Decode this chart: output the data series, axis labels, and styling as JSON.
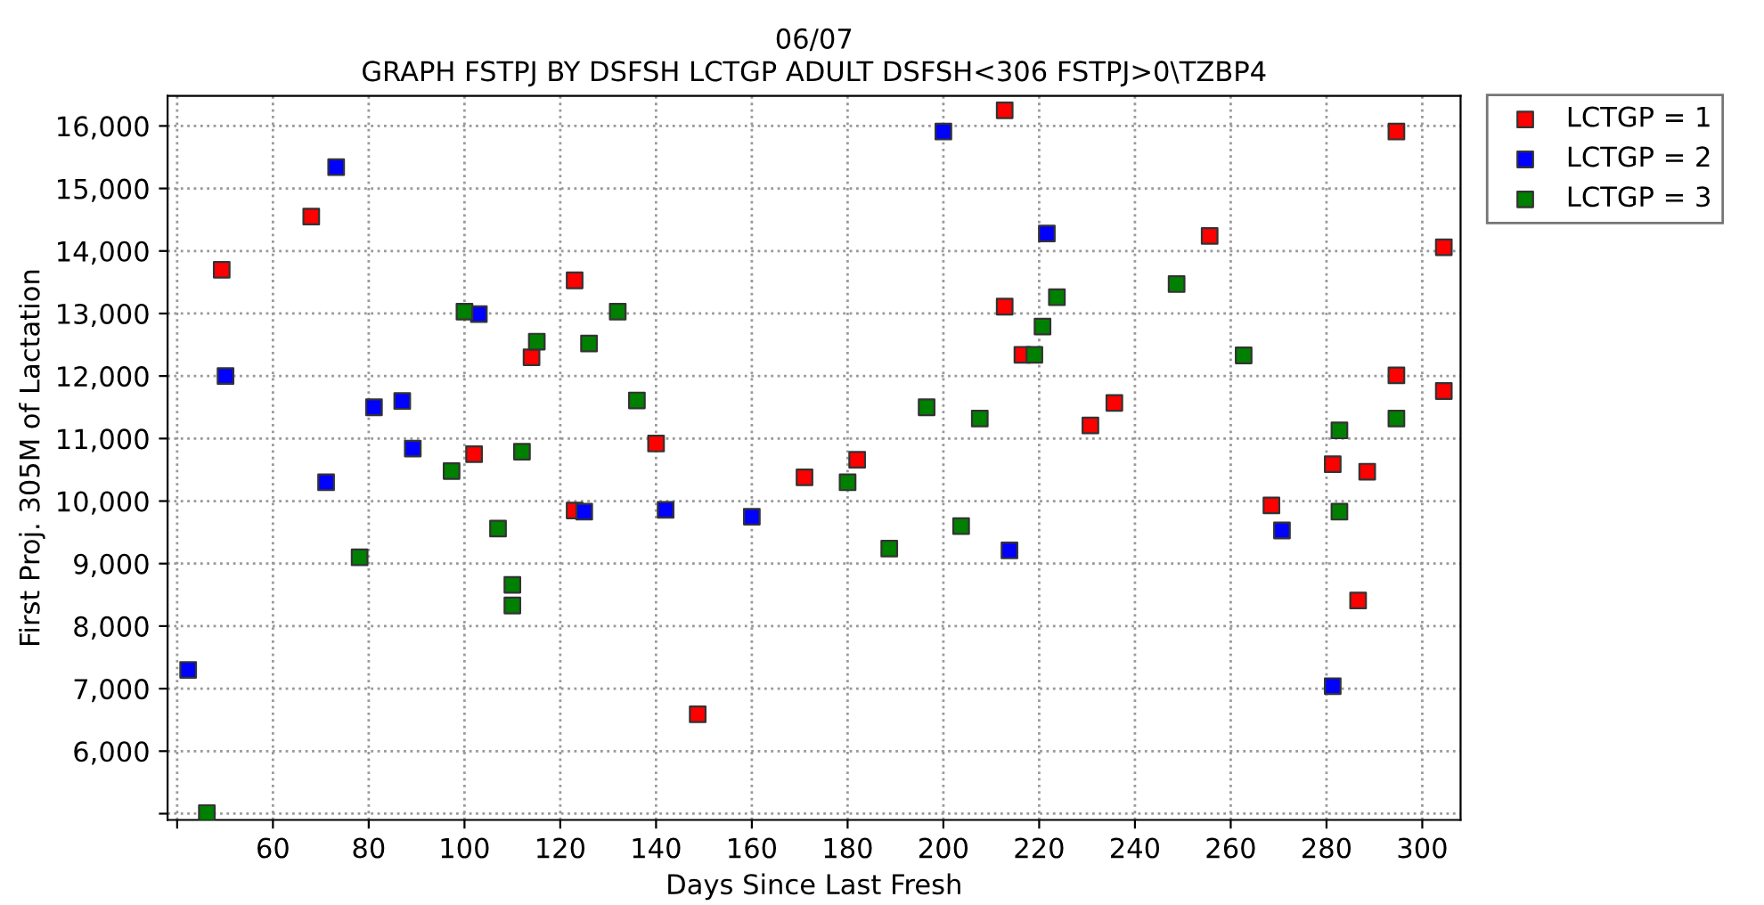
{
  "chart_data": {
    "type": "scatter",
    "title": "06/07\nGRAPH FSTPJ BY DSFSH LCTGP ADULT DSFSH<306 FSTPJ>0\\TZBP4",
    "xlabel": "Days Since Last Fresh",
    "ylabel": "First Proj. 305M of Lactation",
    "marker": "square",
    "grid": true,
    "legend": "top right",
    "xlim": [
      38,
      308
    ],
    "ylim": [
      4900,
      16480
    ],
    "xticks": [
      {
        "value": 40,
        "label": null
      },
      60,
      80,
      100,
      120,
      140,
      160,
      180,
      200,
      220,
      240,
      260,
      280,
      300
    ],
    "yticks": [
      {
        "value": 5000,
        "label": null
      },
      {
        "value": 6000,
        "label": "6,000"
      },
      {
        "value": 7000,
        "label": "7,000"
      },
      {
        "value": 8000,
        "label": "8,000"
      },
      {
        "value": 9000,
        "label": "9,000"
      },
      {
        "value": 10000,
        "label": "10,000"
      },
      {
        "value": 11000,
        "label": "11,000"
      },
      {
        "value": 12000,
        "label": "12,000"
      },
      {
        "value": 13000,
        "label": "13,000"
      },
      {
        "value": 14000,
        "label": "14,000"
      },
      {
        "value": 15000,
        "label": "15,000"
      },
      {
        "value": 16000,
        "label": "16,000"
      }
    ],
    "series": [
      {
        "name": "LCTGP = 1",
        "color": "#ff0000",
        "x": [
          49.3,
          68,
          102,
          114,
          123,
          123,
          140,
          148.7,
          171,
          182,
          212.8,
          212.8,
          216.5,
          230.7,
          235.7,
          255.6,
          268.5,
          281.3,
          286.6,
          288.5,
          294.6,
          294.6,
          304.5,
          304.5
        ],
        "values": [
          13700,
          14550,
          10750,
          12300,
          13530,
          9850,
          10920,
          6590,
          10380,
          10660,
          16250,
          13110,
          12340,
          11210,
          11570,
          14240,
          9930,
          10590,
          8410,
          10470,
          15910,
          12010,
          14060,
          11760
        ]
      },
      {
        "name": "LCTGP = 2",
        "color": "#0000ff",
        "x": [
          42.3,
          50.1,
          73.2,
          71.1,
          81.1,
          87,
          89.2,
          103,
          125,
          142,
          160,
          200,
          213.8,
          221.6,
          270.7,
          281.3
        ],
        "values": [
          7300,
          12000,
          15340,
          10300,
          11500,
          11600,
          10840,
          12990,
          9830,
          9860,
          9750,
          15910,
          9210,
          14280,
          9530,
          7040
        ]
      },
      {
        "name": "LCTGP = 3",
        "color": "#008000",
        "x": [
          46.2,
          78.1,
          97.3,
          100,
          107,
          110,
          110,
          112,
          115.1,
          126,
          132,
          136,
          180,
          188.7,
          196.5,
          203.7,
          207.6,
          219,
          220.7,
          223.7,
          248.7,
          262.7,
          282.7,
          282.7,
          294.6
        ],
        "values": [
          5010,
          9100,
          10480,
          13030,
          9560,
          8660,
          8330,
          10790,
          12550,
          12520,
          13030,
          11610,
          10300,
          9240,
          11500,
          9600,
          11320,
          12340,
          12790,
          13260,
          13470,
          12330,
          11130,
          9830,
          11320
        ]
      }
    ]
  }
}
